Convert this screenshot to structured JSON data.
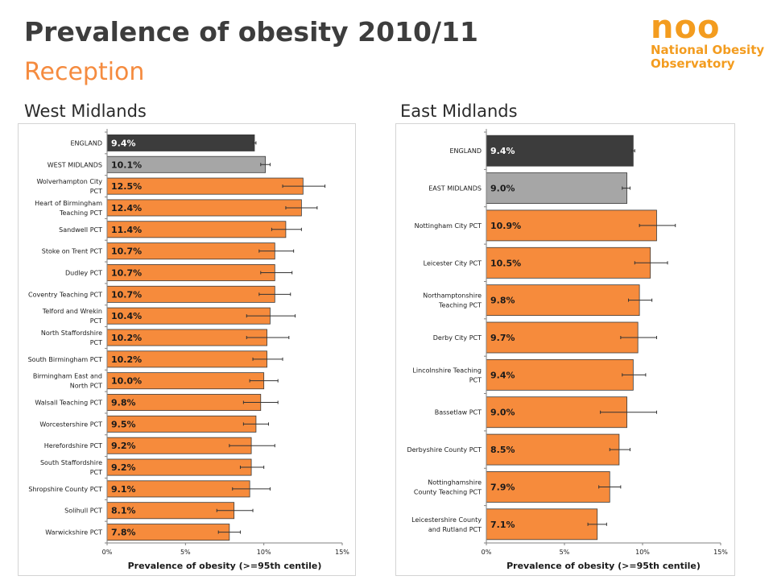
{
  "title": "Prevalence of obesity 2010/11",
  "subtitle": "Reception",
  "logo": {
    "short": "noo",
    "line1": "National Obesity",
    "line2": "Observatory"
  },
  "colors": {
    "england": "#3c3c3c",
    "region": "#a6a6a6",
    "pct": "#f68b3c",
    "title": "#3d3d3d",
    "subtitle": "#f58b3f",
    "logo": "#f39c1f"
  },
  "chart_data": [
    {
      "type": "bar",
      "orientation": "horizontal",
      "title": "West Midlands",
      "xlabel": "Prevalence of obesity (>=95th centile)",
      "xlim": [
        0,
        15
      ],
      "ticks": [
        "0%",
        "5%",
        "10%",
        "15%"
      ],
      "grid": false,
      "error_bars": true,
      "categories": [
        {
          "lines": [
            "ENGLAND"
          ],
          "value": 9.4,
          "label": "9.4%",
          "err": [
            9.3,
            9.5
          ],
          "kind": "england"
        },
        {
          "lines": [
            "WEST MIDLANDS"
          ],
          "value": 10.1,
          "label": "10.1%",
          "err": [
            9.8,
            10.4
          ],
          "kind": "region"
        },
        {
          "lines": [
            "Wolverhampton City",
            "PCT"
          ],
          "value": 12.5,
          "label": "12.5%",
          "err": [
            11.2,
            13.9
          ],
          "kind": "pct"
        },
        {
          "lines": [
            "Heart of Birmingham",
            "Teaching PCT"
          ],
          "value": 12.4,
          "label": "12.4%",
          "err": [
            11.4,
            13.4
          ],
          "kind": "pct"
        },
        {
          "lines": [
            "Sandwell PCT"
          ],
          "value": 11.4,
          "label": "11.4%",
          "err": [
            10.5,
            12.4
          ],
          "kind": "pct"
        },
        {
          "lines": [
            "Stoke on Trent PCT"
          ],
          "value": 10.7,
          "label": "10.7%",
          "err": [
            9.7,
            11.9
          ],
          "kind": "pct"
        },
        {
          "lines": [
            "Dudley PCT"
          ],
          "value": 10.7,
          "label": "10.7%",
          "err": [
            9.8,
            11.8
          ],
          "kind": "pct"
        },
        {
          "lines": [
            "Coventry Teaching PCT"
          ],
          "value": 10.7,
          "label": "10.7%",
          "err": [
            9.7,
            11.7
          ],
          "kind": "pct"
        },
        {
          "lines": [
            "Telford and Wrekin",
            "PCT"
          ],
          "value": 10.4,
          "label": "10.4%",
          "err": [
            8.9,
            12.0
          ],
          "kind": "pct"
        },
        {
          "lines": [
            "North Staffordshire",
            "PCT"
          ],
          "value": 10.2,
          "label": "10.2%",
          "err": [
            8.9,
            11.6
          ],
          "kind": "pct"
        },
        {
          "lines": [
            "South Birmingham PCT"
          ],
          "value": 10.2,
          "label": "10.2%",
          "err": [
            9.3,
            11.2
          ],
          "kind": "pct"
        },
        {
          "lines": [
            "Birmingham East and",
            "North PCT"
          ],
          "value": 10.0,
          "label": "10.0%",
          "err": [
            9.1,
            10.9
          ],
          "kind": "pct"
        },
        {
          "lines": [
            "Walsall Teaching PCT"
          ],
          "value": 9.8,
          "label": "9.8%",
          "err": [
            8.7,
            10.9
          ],
          "kind": "pct"
        },
        {
          "lines": [
            "Worcestershire PCT"
          ],
          "value": 9.5,
          "label": "9.5%",
          "err": [
            8.7,
            10.3
          ],
          "kind": "pct"
        },
        {
          "lines": [
            "Herefordshire PCT"
          ],
          "value": 9.2,
          "label": "9.2%",
          "err": [
            7.8,
            10.7
          ],
          "kind": "pct"
        },
        {
          "lines": [
            "South Staffordshire",
            "PCT"
          ],
          "value": 9.2,
          "label": "9.2%",
          "err": [
            8.5,
            10.0
          ],
          "kind": "pct"
        },
        {
          "lines": [
            "Shropshire County PCT"
          ],
          "value": 9.1,
          "label": "9.1%",
          "err": [
            8.0,
            10.4
          ],
          "kind": "pct"
        },
        {
          "lines": [
            "Solihull PCT"
          ],
          "value": 8.1,
          "label": "8.1%",
          "err": [
            7.0,
            9.3
          ],
          "kind": "pct"
        },
        {
          "lines": [
            "Warwickshire PCT"
          ],
          "value": 7.8,
          "label": "7.8%",
          "err": [
            7.1,
            8.5
          ],
          "kind": "pct"
        }
      ]
    },
    {
      "type": "bar",
      "orientation": "horizontal",
      "title": "East Midlands",
      "xlabel": "Prevalence of obesity (>=95th centile)",
      "xlim": [
        0,
        15
      ],
      "ticks": [
        "0%",
        "5%",
        "10%",
        "15%"
      ],
      "grid": false,
      "error_bars": true,
      "categories": [
        {
          "lines": [
            "ENGLAND"
          ],
          "value": 9.4,
          "label": "9.4%",
          "err": [
            9.3,
            9.5
          ],
          "kind": "england"
        },
        {
          "lines": [
            "EAST MIDLANDS"
          ],
          "value": 9.0,
          "label": "9.0%",
          "err": [
            8.7,
            9.2
          ],
          "kind": "region"
        },
        {
          "lines": [
            "Nottingham City PCT"
          ],
          "value": 10.9,
          "label": "10.9%",
          "err": [
            9.8,
            12.1
          ],
          "kind": "pct"
        },
        {
          "lines": [
            "Leicester City PCT"
          ],
          "value": 10.5,
          "label": "10.5%",
          "err": [
            9.5,
            11.6
          ],
          "kind": "pct"
        },
        {
          "lines": [
            "Northamptonshire",
            "Teaching PCT"
          ],
          "value": 9.8,
          "label": "9.8%",
          "err": [
            9.1,
            10.6
          ],
          "kind": "pct"
        },
        {
          "lines": [
            "Derby City PCT"
          ],
          "value": 9.7,
          "label": "9.7%",
          "err": [
            8.6,
            10.9
          ],
          "kind": "pct"
        },
        {
          "lines": [
            "Lincolnshire Teaching",
            "PCT"
          ],
          "value": 9.4,
          "label": "9.4%",
          "err": [
            8.7,
            10.2
          ],
          "kind": "pct"
        },
        {
          "lines": [
            "Bassetlaw PCT"
          ],
          "value": 9.0,
          "label": "9.0%",
          "err": [
            7.3,
            10.9
          ],
          "kind": "pct"
        },
        {
          "lines": [
            "Derbyshire County PCT"
          ],
          "value": 8.5,
          "label": "8.5%",
          "err": [
            7.9,
            9.2
          ],
          "kind": "pct"
        },
        {
          "lines": [
            "Nottinghamshire",
            "County Teaching PCT"
          ],
          "value": 7.9,
          "label": "7.9%",
          "err": [
            7.2,
            8.6
          ],
          "kind": "pct"
        },
        {
          "lines": [
            "Leicestershire County",
            "and Rutland PCT"
          ],
          "value": 7.1,
          "label": "7.1%",
          "err": [
            6.5,
            7.7
          ],
          "kind": "pct"
        }
      ]
    }
  ]
}
